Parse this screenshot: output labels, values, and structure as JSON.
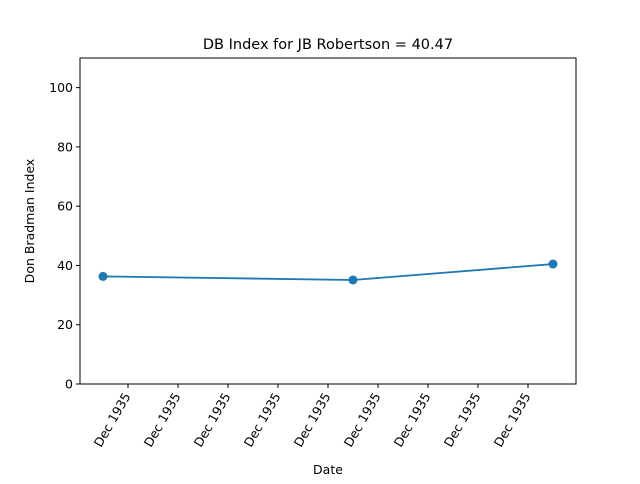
{
  "chart_data": {
    "type": "line",
    "title": "DB Index for JB Robertson = 40.47",
    "xlabel": "Date",
    "ylabel": "Don Bradman Index",
    "ylim": [
      0,
      110
    ],
    "yticks": [
      0,
      20,
      40,
      60,
      80,
      100
    ],
    "xtick_labels": [
      "Dec 1935",
      "Dec 1935",
      "Dec 1935",
      "Dec 1935",
      "Dec 1935",
      "Dec 1935",
      "Dec 1935",
      "Dec 1935",
      "Dec 1935"
    ],
    "grid": false,
    "legend": "none",
    "series": [
      {
        "color": "#1f77b4",
        "marker": "circle",
        "points": [
          {
            "x": "Dec 1935",
            "y": 36.3
          },
          {
            "x": "Dec 1935",
            "y": 35.1
          },
          {
            "x": "Dec 1935",
            "y": 40.47
          }
        ]
      }
    ]
  }
}
